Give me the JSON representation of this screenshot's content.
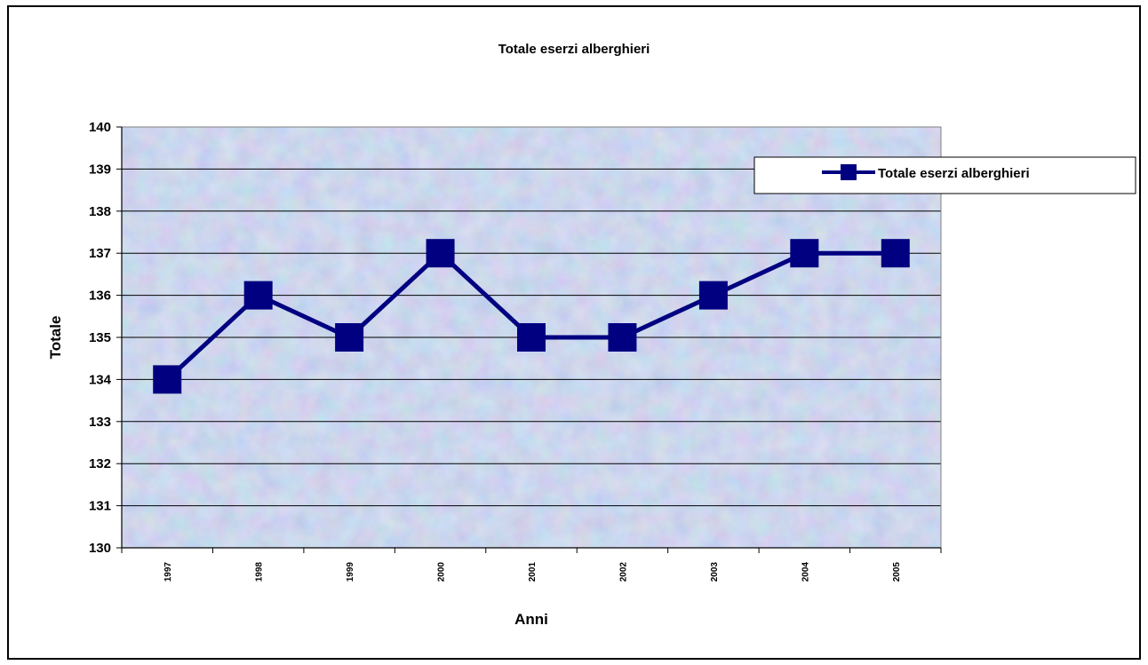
{
  "chart_data": {
    "type": "line",
    "title": "Totale eserzi alberghieri",
    "xlabel": "Anni",
    "ylabel": "Totale",
    "categories": [
      "1997",
      "1998",
      "1999",
      "2000",
      "2001",
      "2002",
      "2003",
      "2004",
      "2005"
    ],
    "series": [
      {
        "name": "Totale eserzi alberghieri",
        "values": [
          134,
          136,
          135,
          137,
          135,
          135,
          136,
          137,
          137
        ],
        "color": "#000080"
      }
    ],
    "ylim": [
      130,
      140
    ],
    "yticks": [
      "130",
      "131",
      "132",
      "133",
      "134",
      "135",
      "136",
      "137",
      "138",
      "139",
      "140"
    ],
    "grid": true,
    "legend": "right"
  }
}
